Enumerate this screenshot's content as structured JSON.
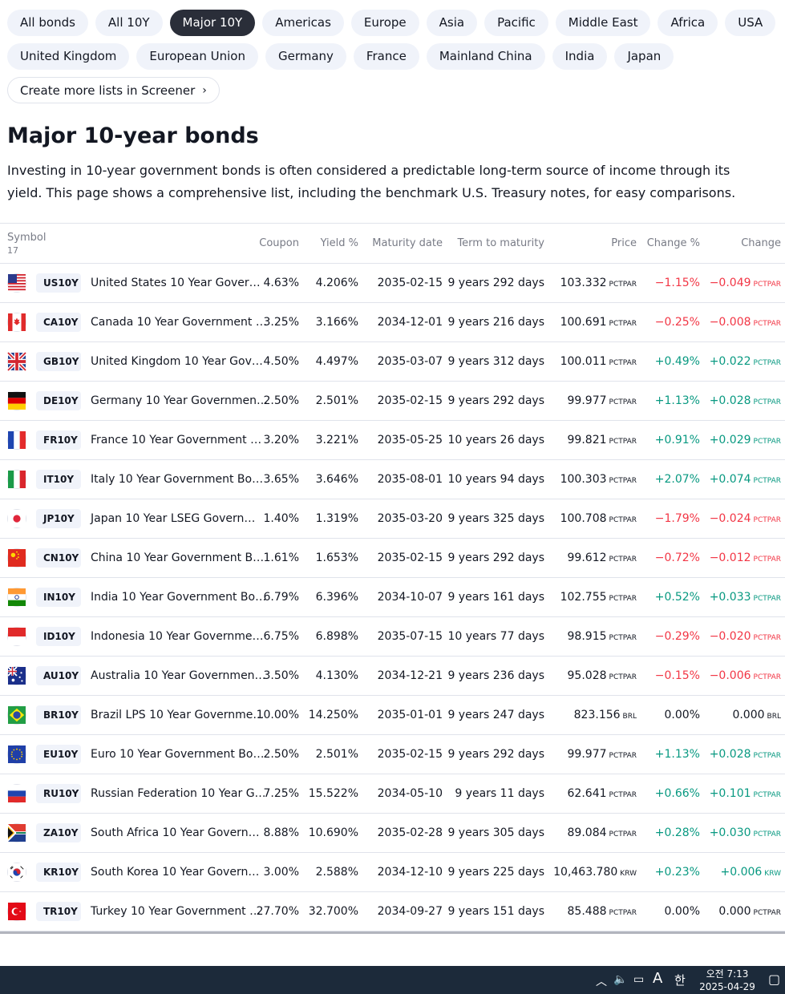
{
  "chips_row1": [
    "All bonds",
    "All 10Y",
    "Major 10Y",
    "Americas",
    "Europe",
    "Asia",
    "Pacific",
    "Middle East",
    "Africa",
    "USA"
  ],
  "chips_row2": [
    "United Kingdom",
    "European Union",
    "Germany",
    "France",
    "Mainland China",
    "India",
    "Japan"
  ],
  "active_chip": "Major 10Y",
  "screener_label": "Create more lists in Screener",
  "title": "Major 10-year bonds",
  "description": "Investing in 10-year government bonds is often considered a predictable long-term source of income through its yield. This page shows a comprehensive list, including the benchmark U.S. Treasury notes, for easy comparisons.",
  "headers": {
    "symbol": "Symbol",
    "count": "17",
    "coupon": "Coupon",
    "yield": "Yield %",
    "maturity": "Maturity date",
    "term": "Term to maturity",
    "price": "Price",
    "change_pct": "Change %",
    "change": "Change"
  },
  "rows": [
    {
      "flag": "us",
      "ticker": "US10Y",
      "name": "United States 10 Year Gover…",
      "coupon": "4.63%",
      "yield": "4.206%",
      "maturity": "2035-02-15",
      "term": "9 years 292 days",
      "price": "103.332",
      "unit": "PCTPAR",
      "chg_pct": "−1.15%",
      "chg": "−0.049",
      "dir": "neg"
    },
    {
      "flag": "ca",
      "ticker": "CA10Y",
      "name": "Canada 10 Year Government …",
      "coupon": "3.25%",
      "yield": "3.166%",
      "maturity": "2034-12-01",
      "term": "9 years 216 days",
      "price": "100.691",
      "unit": "PCTPAR",
      "chg_pct": "−0.25%",
      "chg": "−0.008",
      "dir": "neg"
    },
    {
      "flag": "gb",
      "ticker": "GB10Y",
      "name": "United Kingdom 10 Year Gov…",
      "coupon": "4.50%",
      "yield": "4.497%",
      "maturity": "2035-03-07",
      "term": "9 years 312 days",
      "price": "100.011",
      "unit": "PCTPAR",
      "chg_pct": "+0.49%",
      "chg": "+0.022",
      "dir": "pos"
    },
    {
      "flag": "de",
      "ticker": "DE10Y",
      "name": "Germany 10 Year Governmen…",
      "coupon": "2.50%",
      "yield": "2.501%",
      "maturity": "2035-02-15",
      "term": "9 years 292 days",
      "price": "99.977",
      "unit": "PCTPAR",
      "chg_pct": "+1.13%",
      "chg": "+0.028",
      "dir": "pos"
    },
    {
      "flag": "fr",
      "ticker": "FR10Y",
      "name": "France 10 Year Government …",
      "coupon": "3.20%",
      "yield": "3.221%",
      "maturity": "2035-05-25",
      "term": "10 years 26 days",
      "price": "99.821",
      "unit": "PCTPAR",
      "chg_pct": "+0.91%",
      "chg": "+0.029",
      "dir": "pos"
    },
    {
      "flag": "it",
      "ticker": "IT10Y",
      "name": "Italy 10 Year Government Bo…",
      "coupon": "3.65%",
      "yield": "3.646%",
      "maturity": "2035-08-01",
      "term": "10 years 94 days",
      "price": "100.303",
      "unit": "PCTPAR",
      "chg_pct": "+2.07%",
      "chg": "+0.074",
      "dir": "pos"
    },
    {
      "flag": "jp",
      "ticker": "JP10Y",
      "name": "Japan 10 Year LSEG Govern…",
      "coupon": "1.40%",
      "yield": "1.319%",
      "maturity": "2035-03-20",
      "term": "9 years 325 days",
      "price": "100.708",
      "unit": "PCTPAR",
      "chg_pct": "−1.79%",
      "chg": "−0.024",
      "dir": "neg"
    },
    {
      "flag": "cn",
      "ticker": "CN10Y",
      "name": "China 10 Year Government B…",
      "coupon": "1.61%",
      "yield": "1.653%",
      "maturity": "2035-02-15",
      "term": "9 years 292 days",
      "price": "99.612",
      "unit": "PCTPAR",
      "chg_pct": "−0.72%",
      "chg": "−0.012",
      "dir": "neg"
    },
    {
      "flag": "in",
      "ticker": "IN10Y",
      "name": "India 10 Year Government Bo…",
      "coupon": "6.79%",
      "yield": "6.396%",
      "maturity": "2034-10-07",
      "term": "9 years 161 days",
      "price": "102.755",
      "unit": "PCTPAR",
      "chg_pct": "+0.52%",
      "chg": "+0.033",
      "dir": "pos"
    },
    {
      "flag": "id",
      "ticker": "ID10Y",
      "name": "Indonesia 10 Year Governme…",
      "coupon": "6.75%",
      "yield": "6.898%",
      "maturity": "2035-07-15",
      "term": "10 years 77 days",
      "price": "98.915",
      "unit": "PCTPAR",
      "chg_pct": "−0.29%",
      "chg": "−0.020",
      "dir": "neg"
    },
    {
      "flag": "au",
      "ticker": "AU10Y",
      "name": "Australia 10 Year Governmen…",
      "coupon": "3.50%",
      "yield": "4.130%",
      "maturity": "2034-12-21",
      "term": "9 years 236 days",
      "price": "95.028",
      "unit": "PCTPAR",
      "chg_pct": "−0.15%",
      "chg": "−0.006",
      "dir": "neg"
    },
    {
      "flag": "br",
      "ticker": "BR10Y",
      "name": "Brazil LPS 10 Year Governme…",
      "coupon": "10.00%",
      "yield": "14.250%",
      "maturity": "2035-01-01",
      "term": "9 years 247 days",
      "price": "823.156",
      "unit": "BRL",
      "chg_pct": "0.00%",
      "chg": "0.000",
      "dir": "neutral"
    },
    {
      "flag": "eu",
      "ticker": "EU10Y",
      "name": "Euro 10 Year Government Bo…",
      "coupon": "2.50%",
      "yield": "2.501%",
      "maturity": "2035-02-15",
      "term": "9 years 292 days",
      "price": "99.977",
      "unit": "PCTPAR",
      "chg_pct": "+1.13%",
      "chg": "+0.028",
      "dir": "pos"
    },
    {
      "flag": "ru",
      "ticker": "RU10Y",
      "name": "Russian Federation 10 Year G…",
      "coupon": "7.25%",
      "yield": "15.522%",
      "maturity": "2034-05-10",
      "term": "9 years 11 days",
      "price": "62.641",
      "unit": "PCTPAR",
      "chg_pct": "+0.66%",
      "chg": "+0.101",
      "dir": "pos"
    },
    {
      "flag": "za",
      "ticker": "ZA10Y",
      "name": "South Africa 10 Year Govern…",
      "coupon": "8.88%",
      "yield": "10.690%",
      "maturity": "2035-02-28",
      "term": "9 years 305 days",
      "price": "89.084",
      "unit": "PCTPAR",
      "chg_pct": "+0.28%",
      "chg": "+0.030",
      "dir": "pos"
    },
    {
      "flag": "kr",
      "ticker": "KR10Y",
      "name": "South Korea 10 Year Govern…",
      "coupon": "3.00%",
      "yield": "2.588%",
      "maturity": "2034-12-10",
      "term": "9 years 225 days",
      "price": "10,463.780",
      "unit": "KRW",
      "chg_pct": "+0.23%",
      "chg": "+0.006",
      "dir": "pos"
    },
    {
      "flag": "tr",
      "ticker": "TR10Y",
      "name": "Turkey 10 Year Government …",
      "coupon": "27.70%",
      "yield": "32.700%",
      "maturity": "2034-09-27",
      "term": "9 years 151 days",
      "price": "85.488",
      "unit": "PCTPAR",
      "chg_pct": "0.00%",
      "chg": "0.000",
      "dir": "neutral"
    }
  ],
  "taskbar": {
    "time": "오전 7:13",
    "date": "2025-04-29",
    "ime_label": "A",
    "ime_mode": "한"
  },
  "colors": {
    "negative": "#f23645",
    "positive": "#089981",
    "chip_active": "#2a2e39",
    "chip": "#f0f3fa"
  }
}
